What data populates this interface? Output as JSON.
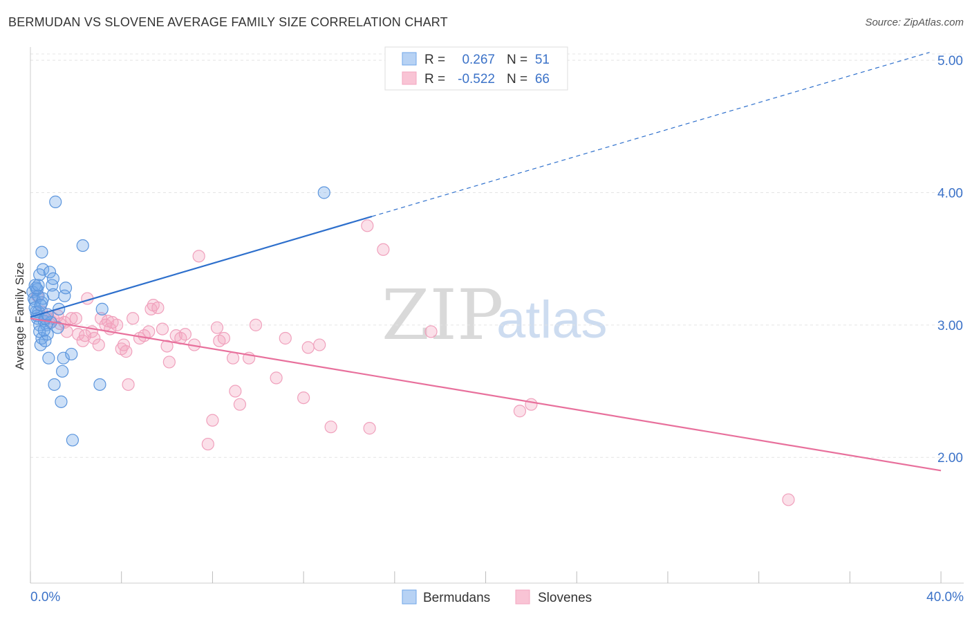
{
  "title": "BERMUDAN VS SLOVENE AVERAGE FAMILY SIZE CORRELATION CHART",
  "source": "Source: ZipAtlas.com",
  "watermark": {
    "zip": "ZIP",
    "atlas": "atlas"
  },
  "colors": {
    "bermudans": "#6fa6e8",
    "slovenes": "#f3a6c0",
    "blue_line": "#2d6fcc",
    "pink_line": "#e8709c"
  },
  "legend": {
    "rows": [
      {
        "r_label": "R =",
        "r_value": "0.267",
        "n_label": "N =",
        "n_value": "51"
      },
      {
        "r_label": "R =",
        "r_value": "-0.522",
        "n_label": "N =",
        "n_value": "66"
      }
    ]
  },
  "chart_data": {
    "type": "scatter",
    "ylabel": "Average Family Size",
    "x_tick_labels": [
      "0.0%",
      "40.0%"
    ],
    "y_tick_labels": [
      "2.00",
      "3.00",
      "4.00",
      "5.00"
    ],
    "y_ticks": [
      2,
      3,
      4,
      5
    ],
    "xlim": [
      0,
      41
    ],
    "ylim": [
      1.05,
      5.1
    ],
    "grid": true,
    "legend_placement": "top-center",
    "series": [
      {
        "name": "Bermudans",
        "points": [
          [
            0.1,
            3.25
          ],
          [
            0.15,
            3.2
          ],
          [
            0.2,
            3.3
          ],
          [
            0.2,
            3.18
          ],
          [
            0.25,
            3.1
          ],
          [
            0.3,
            3.27
          ],
          [
            0.3,
            3.05
          ],
          [
            0.35,
            3.22
          ],
          [
            0.35,
            3.1
          ],
          [
            0.4,
            3.0
          ],
          [
            0.45,
            2.85
          ],
          [
            0.4,
            3.38
          ],
          [
            0.5,
            3.55
          ],
          [
            0.5,
            2.9
          ],
          [
            0.55,
            3.42
          ],
          [
            0.6,
            3.03
          ],
          [
            0.65,
            2.88
          ],
          [
            0.7,
            3.0
          ],
          [
            0.75,
            2.93
          ],
          [
            0.8,
            2.75
          ],
          [
            0.85,
            3.4
          ],
          [
            0.9,
            3.02
          ],
          [
            0.95,
            3.3
          ],
          [
            1.0,
            3.35
          ],
          [
            1.0,
            3.23
          ],
          [
            1.05,
            2.55
          ],
          [
            1.1,
            3.93
          ],
          [
            1.2,
            2.98
          ],
          [
            1.25,
            3.12
          ],
          [
            1.35,
            2.42
          ],
          [
            1.4,
            2.65
          ],
          [
            1.45,
            2.75
          ],
          [
            1.5,
            3.22
          ],
          [
            1.55,
            3.28
          ],
          [
            1.8,
            2.78
          ],
          [
            1.85,
            2.13
          ],
          [
            2.3,
            3.6
          ],
          [
            3.05,
            2.55
          ],
          [
            3.15,
            3.12
          ],
          [
            12.9,
            4.0
          ],
          [
            0.25,
            3.28
          ],
          [
            0.5,
            3.17
          ],
          [
            0.3,
            3.07
          ],
          [
            0.65,
            3.05
          ],
          [
            0.2,
            3.13
          ],
          [
            0.4,
            2.95
          ],
          [
            0.55,
            3.2
          ],
          [
            0.75,
            3.08
          ],
          [
            0.35,
            3.3
          ],
          [
            0.45,
            3.15
          ],
          [
            0.6,
            2.96
          ]
        ],
        "trendline": {
          "x": [
            0,
            15
          ],
          "y": [
            3.06,
            3.82
          ],
          "extended_x": [
            15,
            39.5
          ],
          "extended_y": [
            3.82,
            5.06
          ]
        }
      },
      {
        "name": "Slovenes",
        "points": [
          [
            0.3,
            3.22
          ],
          [
            0.5,
            3.1
          ],
          [
            0.9,
            3.03
          ],
          [
            1.0,
            3.05
          ],
          [
            1.2,
            3.07
          ],
          [
            1.5,
            3.02
          ],
          [
            1.6,
            2.95
          ],
          [
            1.8,
            3.05
          ],
          [
            2.0,
            3.05
          ],
          [
            2.1,
            2.93
          ],
          [
            2.3,
            2.88
          ],
          [
            2.5,
            3.2
          ],
          [
            2.7,
            2.95
          ],
          [
            2.8,
            2.9
          ],
          [
            3.0,
            2.85
          ],
          [
            3.1,
            3.05
          ],
          [
            3.3,
            3.0
          ],
          [
            3.4,
            3.03
          ],
          [
            3.5,
            2.97
          ],
          [
            3.8,
            3.0
          ],
          [
            4.0,
            2.82
          ],
          [
            4.1,
            2.85
          ],
          [
            4.2,
            2.8
          ],
          [
            4.3,
            2.55
          ],
          [
            4.5,
            3.05
          ],
          [
            4.8,
            2.9
          ],
          [
            5.0,
            2.92
          ],
          [
            5.2,
            2.95
          ],
          [
            5.3,
            3.12
          ],
          [
            5.4,
            3.15
          ],
          [
            5.6,
            3.13
          ],
          [
            5.8,
            2.97
          ],
          [
            6.0,
            2.84
          ],
          [
            6.1,
            2.72
          ],
          [
            6.4,
            2.92
          ],
          [
            6.6,
            2.9
          ],
          [
            6.8,
            2.93
          ],
          [
            7.2,
            2.85
          ],
          [
            7.4,
            3.52
          ],
          [
            7.8,
            2.1
          ],
          [
            8.0,
            2.28
          ],
          [
            8.2,
            2.98
          ],
          [
            8.3,
            2.88
          ],
          [
            8.5,
            2.9
          ],
          [
            8.9,
            2.75
          ],
          [
            9.0,
            2.5
          ],
          [
            9.2,
            2.4
          ],
          [
            9.6,
            2.75
          ],
          [
            9.9,
            3.0
          ],
          [
            10.8,
            2.6
          ],
          [
            11.2,
            2.9
          ],
          [
            12.0,
            2.45
          ],
          [
            12.2,
            2.83
          ],
          [
            12.7,
            2.85
          ],
          [
            13.2,
            2.23
          ],
          [
            14.8,
            3.75
          ],
          [
            14.9,
            2.22
          ],
          [
            15.5,
            3.57
          ],
          [
            17.6,
            2.95
          ],
          [
            21.5,
            2.35
          ],
          [
            22.0,
            2.4
          ],
          [
            33.3,
            1.68
          ],
          [
            0.7,
            3.06
          ],
          [
            1.3,
            3.01
          ],
          [
            2.4,
            2.92
          ],
          [
            3.6,
            3.02
          ]
        ],
        "trendline": {
          "x": [
            0,
            40
          ],
          "y": [
            3.05,
            1.9
          ]
        }
      }
    ]
  },
  "bottom_legend": {
    "items": [
      "Bermudans",
      "Slovenes"
    ]
  }
}
